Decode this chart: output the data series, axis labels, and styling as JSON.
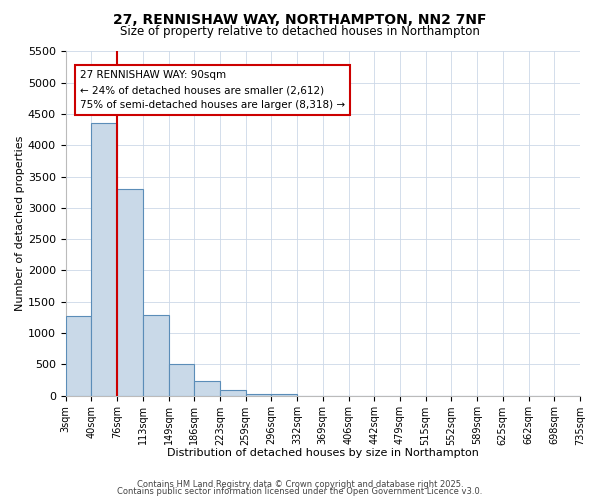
{
  "title": "27, RENNISHAW WAY, NORTHAMPTON, NN2 7NF",
  "subtitle": "Size of property relative to detached houses in Northampton",
  "xlabel": "Distribution of detached houses by size in Northampton",
  "ylabel": "Number of detached properties",
  "bar_values": [
    1270,
    4350,
    3300,
    1280,
    500,
    230,
    90,
    30,
    20,
    0,
    0,
    0,
    0,
    0,
    0,
    0,
    0,
    0,
    0,
    0
  ],
  "bin_labels": [
    "3sqm",
    "40sqm",
    "76sqm",
    "113sqm",
    "149sqm",
    "186sqm",
    "223sqm",
    "259sqm",
    "296sqm",
    "332sqm",
    "369sqm",
    "406sqm",
    "442sqm",
    "479sqm",
    "515sqm",
    "552sqm",
    "589sqm",
    "625sqm",
    "662sqm",
    "698sqm",
    "735sqm"
  ],
  "ylim": [
    0,
    5500
  ],
  "yticks": [
    0,
    500,
    1000,
    1500,
    2000,
    2500,
    3000,
    3500,
    4000,
    4500,
    5000,
    5500
  ],
  "bar_color": "#c9d9e8",
  "bar_edge_color": "#5b8db8",
  "vline_x_index": 2,
  "vline_color": "#cc0000",
  "annotation_title": "27 RENNISHAW WAY: 90sqm",
  "annotation_line1": "← 24% of detached houses are smaller (2,612)",
  "annotation_line2": "75% of semi-detached houses are larger (8,318) →",
  "annotation_box_color": "#ffffff",
  "annotation_box_edgecolor": "#cc0000",
  "footer1": "Contains HM Land Registry data © Crown copyright and database right 2025.",
  "footer2": "Contains public sector information licensed under the Open Government Licence v3.0.",
  "bg_color": "#ffffff",
  "grid_color": "#ccd8e8"
}
